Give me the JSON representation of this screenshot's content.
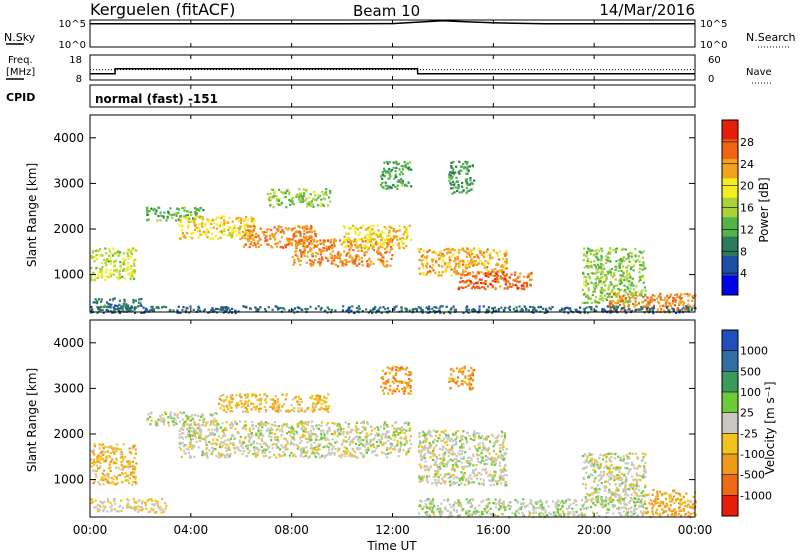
{
  "header": {
    "radar": "Kerguelen (fitACF)",
    "beam": "Beam 10",
    "date": "14/Mar/2016"
  },
  "nsky_panel": {
    "left_label": "N.Sky",
    "left_ticks": [
      "10^5",
      "10^0"
    ],
    "right_ticks": [
      "10^5",
      "10^0"
    ],
    "right_label": "N.Search"
  },
  "freq_panel": {
    "left_label_line1": "Freq.",
    "left_label_line2": "[MHz]",
    "left_ticks": [
      "18",
      "8"
    ],
    "right_ticks": [
      "60",
      "0"
    ],
    "right_label": "Nave"
  },
  "cpid_panel": {
    "label": "CPID",
    "mode": "normal (fast) -151"
  },
  "time_axis": {
    "ticks": [
      "00:00",
      "04:00",
      "08:00",
      "12:00",
      "16:00",
      "20:00",
      "00:00"
    ],
    "label": "Time UT"
  },
  "power_panel": {
    "ylabel": "Slant Range [km]",
    "yticks": [
      "4000",
      "3000",
      "2000",
      "1000"
    ],
    "colorbar_label": "Power [dB]",
    "colorbar_ticks": [
      "28",
      "24",
      "20",
      "16",
      "12",
      "8",
      "4"
    ],
    "colors": [
      "#0000e6",
      "#1f4ea8",
      "#2d7a5a",
      "#52b348",
      "#a8d13a",
      "#f2ee22",
      "#f2a21c",
      "#f06414",
      "#e81e0c"
    ]
  },
  "velocity_panel": {
    "ylabel": "Slant Range [km]",
    "yticks": [
      "4000",
      "3000",
      "2000",
      "1000"
    ],
    "colorbar_label": "Velocity [m s⁻¹]",
    "colorbar_ticks": [
      "1000",
      "500",
      "100",
      "25",
      "-25",
      "-100",
      "-500",
      "-1000"
    ],
    "colors": [
      "#1f4fb8",
      "#2f6fa6",
      "#3c9a5c",
      "#6fca3a",
      "#c8c8c0",
      "#f2c21e",
      "#f09a1c",
      "#ee6a16",
      "#e81e0c"
    ]
  },
  "chart_data": [
    {
      "type": "line",
      "name": "N.Sky",
      "x_range": [
        0,
        24
      ],
      "y_scale": "log",
      "ylim": [
        1,
        100000
      ],
      "x": [
        0,
        2,
        4,
        6,
        8,
        10,
        12,
        13,
        14,
        15,
        16,
        18,
        20,
        22,
        24
      ],
      "y": [
        20000,
        20000,
        20000,
        20000,
        20000,
        20000,
        22000,
        40000,
        70000,
        45000,
        30000,
        20000,
        20000,
        20000,
        20000
      ]
    },
    {
      "type": "line",
      "name": "Freq.",
      "x_range": [
        0,
        24
      ],
      "ylim": [
        8,
        18
      ],
      "x": [
        0,
        0.99,
        1,
        12.99,
        13,
        24
      ],
      "y": [
        10.5,
        10.5,
        12.5,
        12.5,
        10.5,
        10.5
      ],
      "nave": 25
    },
    {
      "type": "heatmap",
      "name": "Power",
      "x_range": [
        0,
        24
      ],
      "ylim": [
        180,
        4500
      ],
      "clim": [
        0,
        30
      ],
      "regions": [
        {
          "t": [
            0.0,
            1.8
          ],
          "r": [
            900,
            1600
          ],
          "v": 16
        },
        {
          "t": [
            0.0,
            2.0
          ],
          "r": [
            200,
            500
          ],
          "v": 8
        },
        {
          "t": [
            2.2,
            4.5
          ],
          "r": [
            2200,
            2500
          ],
          "v": 12
        },
        {
          "t": [
            3.5,
            6.5
          ],
          "r": [
            1800,
            2300
          ],
          "v": 20
        },
        {
          "t": [
            6.0,
            9.0
          ],
          "r": [
            1600,
            2100
          ],
          "v": 24
        },
        {
          "t": [
            7.0,
            9.5
          ],
          "r": [
            2500,
            2900
          ],
          "v": 14
        },
        {
          "t": [
            8.0,
            12.0
          ],
          "r": [
            1200,
            1800
          ],
          "v": 24
        },
        {
          "t": [
            10.0,
            12.7
          ],
          "r": [
            1600,
            2100
          ],
          "v": 20
        },
        {
          "t": [
            11.5,
            12.7
          ],
          "r": [
            2900,
            3500
          ],
          "v": 10
        },
        {
          "t": [
            13.0,
            16.5
          ],
          "r": [
            1000,
            1600
          ],
          "v": 22
        },
        {
          "t": [
            14.5,
            17.5
          ],
          "r": [
            700,
            1100
          ],
          "v": 26
        },
        {
          "t": [
            14.2,
            15.2
          ],
          "r": [
            2800,
            3500
          ],
          "v": 10
        },
        {
          "t": [
            19.5,
            22.0
          ],
          "r": [
            400,
            1600
          ],
          "v": 14
        },
        {
          "t": [
            20.5,
            24.0
          ],
          "r": [
            200,
            600
          ],
          "v": 24
        },
        {
          "t": [
            0.0,
            24.0
          ],
          "r": [
            180,
            330
          ],
          "v": 6
        }
      ]
    },
    {
      "type": "heatmap",
      "name": "Velocity",
      "x_range": [
        0,
        24
      ],
      "ylim": [
        180,
        4500
      ],
      "clim": [
        -1000,
        1000
      ],
      "regions": [
        {
          "t": [
            0.0,
            1.8
          ],
          "r": [
            900,
            1800
          ],
          "v": -300
        },
        {
          "t": [
            0.0,
            3.0
          ],
          "r": [
            300,
            600
          ],
          "v": -150
        },
        {
          "t": [
            2.2,
            5.0
          ],
          "r": [
            2200,
            2500
          ],
          "v": 0
        },
        {
          "t": [
            3.5,
            12.7
          ],
          "r": [
            1500,
            2300
          ],
          "v": 0
        },
        {
          "t": [
            5.0,
            9.5
          ],
          "r": [
            2500,
            2900
          ],
          "v": -300
        },
        {
          "t": [
            13.0,
            16.5
          ],
          "r": [
            900,
            2100
          ],
          "v": 0
        },
        {
          "t": [
            11.5,
            12.7
          ],
          "r": [
            2900,
            3500
          ],
          "v": -500
        },
        {
          "t": [
            14.2,
            15.2
          ],
          "r": [
            3000,
            3500
          ],
          "v": -500
        },
        {
          "t": [
            19.5,
            22.0
          ],
          "r": [
            500,
            1600
          ],
          "v": 0
        },
        {
          "t": [
            22.0,
            24.0
          ],
          "r": [
            200,
            800
          ],
          "v": -400
        },
        {
          "t": [
            13.0,
            22.0
          ],
          "r": [
            200,
            600
          ],
          "v": 60
        }
      ]
    }
  ]
}
